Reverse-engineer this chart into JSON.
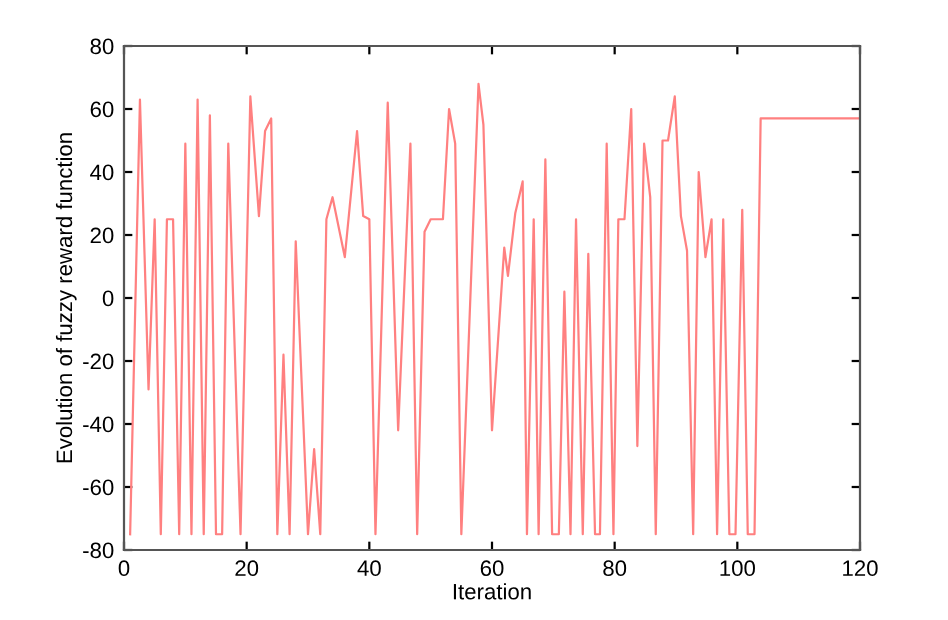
{
  "chart_data": {
    "type": "line",
    "xlabel": "Iteration",
    "ylabel": "Evolution of fuzzy reward function",
    "x": [
      1,
      2.6,
      4,
      5,
      6,
      7,
      8,
      9,
      10,
      11,
      12,
      13,
      14,
      15,
      16,
      17,
      19,
      20.6,
      22,
      23,
      24,
      25,
      26,
      27,
      28,
      30,
      31,
      32,
      33,
      34,
      36,
      38,
      39,
      40,
      41,
      43,
      44.7,
      46.7,
      47.8,
      49,
      50,
      52,
      53,
      54,
      55,
      57.8,
      58.6,
      60,
      62,
      62.6,
      63.8,
      65,
      65.7,
      66.8,
      67.6,
      68.7,
      69.8,
      70.9,
      71.8,
      72.8,
      73.7,
      74.8,
      75.7,
      76.8,
      77.6,
      78.7,
      79.8,
      80.6,
      81.6,
      82.7,
      83.7,
      84.8,
      85.8,
      86.7,
      87.8,
      88.7,
      89.8,
      90.8,
      91.8,
      92.8,
      93.7,
      94.8,
      95.8,
      96.7,
      97.7,
      98.7,
      99.7,
      100.8,
      101.7,
      102.8,
      103.8,
      120
    ],
    "series": [
      {
        "color": "#ff8080",
        "values": [
          -75,
          63,
          -29,
          25,
          -75,
          25,
          25,
          -75,
          49,
          -75,
          63,
          -75,
          58,
          -75,
          -75,
          49,
          -75,
          64,
          26,
          53,
          57,
          -75,
          -18,
          -75,
          18,
          -75,
          -48,
          -75,
          25,
          32,
          13,
          53,
          26,
          25,
          -75,
          62,
          -42,
          49,
          -75,
          21,
          25,
          25,
          60,
          49,
          -75,
          68,
          55,
          -42,
          16,
          7,
          27,
          37,
          -75,
          25,
          -75,
          44,
          -75,
          -75,
          2,
          -75,
          25,
          -75,
          14,
          -75,
          -75,
          49,
          -75,
          25,
          25,
          60,
          -47,
          49,
          32,
          -75,
          50,
          50,
          64,
          26,
          15,
          -75,
          40,
          13,
          25,
          -75,
          25,
          -75,
          -75,
          28,
          -75,
          -75,
          57,
          57
        ]
      }
    ],
    "xlim": [
      0,
      120
    ],
    "ylim": [
      -80,
      80
    ],
    "xticks": [
      0,
      20,
      40,
      60,
      80,
      100,
      120
    ],
    "yticks": [
      -80,
      -60,
      -40,
      -20,
      0,
      20,
      40,
      60,
      80
    ],
    "grid": false,
    "marker": "none",
    "line_style": "solid"
  }
}
